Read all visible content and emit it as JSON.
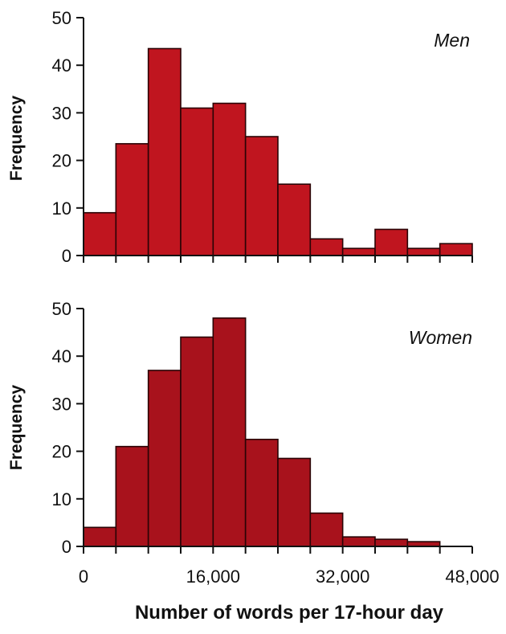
{
  "chart_data": [
    {
      "type": "bar",
      "title": "Men",
      "ylabel": "Frequency",
      "xlabel": "",
      "bin_edges": [
        0,
        4000,
        8000,
        12000,
        16000,
        20000,
        24000,
        28000,
        32000,
        36000,
        40000,
        44000,
        48000
      ],
      "values": [
        9,
        23.5,
        43.5,
        31,
        32,
        25,
        15,
        3.5,
        1.5,
        5.5,
        1.5,
        2.5
      ],
      "xlim": [
        0,
        48000
      ],
      "ylim": [
        0,
        50
      ],
      "yticks": [
        "0",
        "10",
        "20",
        "30",
        "40",
        "50"
      ],
      "xtick_labels": [],
      "bar_color": "#c0151f"
    },
    {
      "type": "bar",
      "title": "Women",
      "ylabel": "Frequency",
      "xlabel": "Number of words per 17-hour day",
      "bin_edges": [
        0,
        4000,
        8000,
        12000,
        16000,
        20000,
        24000,
        28000,
        32000,
        36000,
        40000,
        44000,
        48000
      ],
      "values": [
        4,
        21,
        37,
        44,
        48,
        22.5,
        18.5,
        7,
        2,
        1.5,
        1,
        0
      ],
      "xlim": [
        0,
        48000
      ],
      "ylim": [
        0,
        50
      ],
      "yticks": [
        "0",
        "10",
        "20",
        "30",
        "40",
        "50"
      ],
      "xtick_values": [
        0,
        16000,
        32000,
        48000
      ],
      "xtick_labels": [
        "0",
        "16,000",
        "32,000",
        "48,000"
      ],
      "bar_color": "#a8121c"
    }
  ]
}
